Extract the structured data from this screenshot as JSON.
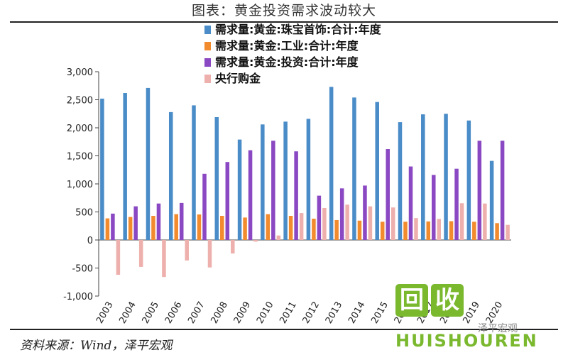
{
  "header": {
    "title": "图表：黄金投资需求波动较大"
  },
  "footer": {
    "source": "资料来源：Wind，泽平宏观"
  },
  "watermark": {
    "char1": "回",
    "char2": "收",
    "brand": "HUISHOUREN",
    "sub": "泽平宏观"
  },
  "chart_data": {
    "type": "bar",
    "title": "图表：黄金投资需求波动较大",
    "xlabel": "",
    "ylabel": "",
    "ylim": [
      -1000,
      3000
    ],
    "yticks": [
      -1000,
      -500,
      0,
      500,
      1000,
      1500,
      2000,
      2500,
      3000
    ],
    "ytick_labels": [
      "-1,000",
      "-500",
      "0",
      "500",
      "1,000",
      "1,500",
      "2,000",
      "2,500",
      "3,000"
    ],
    "grid": false,
    "legend_position": "top",
    "categories": [
      "2003",
      "2004",
      "2005",
      "2006",
      "2007",
      "2008",
      "2009",
      "2010",
      "2011",
      "2012",
      "2013",
      "2014",
      "2015",
      "2016",
      "2017",
      "2018",
      "2019",
      "2020"
    ],
    "series": [
      {
        "name": "需求量:黄金:珠宝首饰:合计:年度",
        "color": "#4a8cc7",
        "values": [
          2520,
          2620,
          2710,
          2280,
          2400,
          2190,
          1790,
          2060,
          2110,
          2160,
          2730,
          2540,
          2460,
          2100,
          2240,
          2250,
          2130,
          1410
        ]
      },
      {
        "name": "需求量:黄金:工业:合计:年度",
        "color": "#f28a2e",
        "values": [
          385,
          410,
          430,
          460,
          455,
          430,
          400,
          460,
          430,
          380,
          355,
          345,
          325,
          325,
          330,
          335,
          325,
          300
        ]
      },
      {
        "name": "需求量:黄金:投资:合计:年度",
        "color": "#8a48c2",
        "values": [
          470,
          600,
          650,
          660,
          1180,
          1390,
          1600,
          1770,
          1580,
          790,
          920,
          970,
          1620,
          1310,
          1160,
          1270,
          1770,
          1770
        ]
      },
      {
        "name": "央行购金",
        "color": "#eeb0ad",
        "values": [
          -620,
          -480,
          -660,
          -365,
          -490,
          -240,
          -30,
          80,
          480,
          570,
          630,
          600,
          580,
          390,
          375,
          655,
          650,
          270
        ]
      }
    ]
  }
}
